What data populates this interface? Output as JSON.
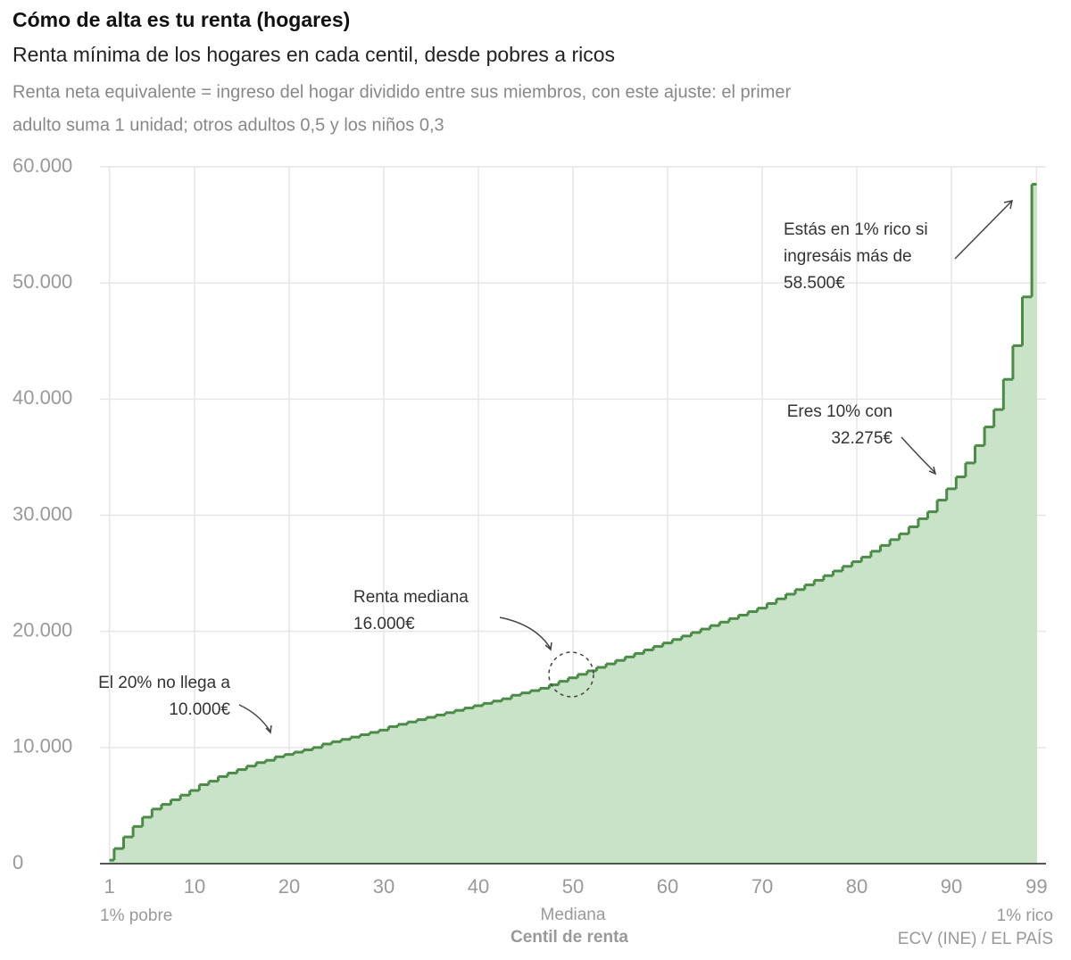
{
  "chart_data": {
    "type": "step",
    "title": "Cómo de alta es tu renta (hogares)",
    "subtitle": "Renta mínima de los hogares en cada centil, desde pobres a ricos",
    "description": [
      "Renta neta equivalente = ingreso del hogar dividido entre sus miembros, con este ajuste: el primer",
      "adulto suma 1 unidad; otros adultos 0,5 y los niños 0,3"
    ],
    "x_label": "Centil de renta",
    "x_notes": [
      "1% pobre",
      "Mediana",
      "1% rico"
    ],
    "source": "ECV (INE) / EL PAÍS",
    "annotations": [
      [
        "El 20% no llega a",
        "10.000€"
      ],
      [
        "Renta mediana",
        "16.000€"
      ],
      [
        "Eres 10% con",
        "32.275€"
      ],
      [
        "Estás en 1% rico si",
        "ingresáis más de",
        "58.500€"
      ]
    ],
    "x": [
      1,
      2,
      3,
      4,
      5,
      6,
      7,
      8,
      9,
      10,
      11,
      12,
      13,
      14,
      15,
      16,
      17,
      18,
      19,
      20,
      21,
      22,
      23,
      24,
      25,
      26,
      27,
      28,
      29,
      30,
      31,
      32,
      33,
      34,
      35,
      36,
      37,
      38,
      39,
      40,
      41,
      42,
      43,
      44,
      45,
      46,
      47,
      48,
      49,
      50,
      51,
      52,
      53,
      54,
      55,
      56,
      57,
      58,
      59,
      60,
      61,
      62,
      63,
      64,
      65,
      66,
      67,
      68,
      69,
      70,
      71,
      72,
      73,
      74,
      75,
      76,
      77,
      78,
      79,
      80,
      81,
      82,
      83,
      84,
      85,
      86,
      87,
      88,
      89,
      90,
      91,
      92,
      93,
      94,
      95,
      96,
      97,
      98,
      99
    ],
    "values": [
      300,
      1300,
      2300,
      3200,
      4000,
      4700,
      5100,
      5500,
      5900,
      6300,
      6800,
      7100,
      7500,
      7800,
      8100,
      8400,
      8700,
      8900,
      9200,
      9400,
      9600,
      9800,
      10000,
      10300,
      10500,
      10700,
      10900,
      11100,
      11300,
      11500,
      11800,
      12000,
      12200,
      12400,
      12600,
      12800,
      13000,
      13200,
      13400,
      13600,
      13800,
      14000,
      14200,
      14500,
      14700,
      14900,
      15100,
      15400,
      15700,
      16000,
      16300,
      16600,
      16900,
      17200,
      17500,
      17800,
      18100,
      18400,
      18700,
      19000,
      19300,
      19600,
      19900,
      20200,
      20500,
      20800,
      21100,
      21400,
      21700,
      22000,
      22400,
      22800,
      23200,
      23600,
      24000,
      24400,
      24800,
      25200,
      25600,
      26000,
      26400,
      26900,
      27400,
      27900,
      28400,
      29000,
      29700,
      30300,
      31300,
      32275,
      33300,
      34500,
      36000,
      37600,
      39100,
      41700,
      44600,
      48800,
      58500
    ],
    "color": "#4b8b47",
    "fill_color": "#c9e3c8",
    "xlim": [
      0,
      100
    ],
    "xticks": [
      1,
      10,
      20,
      30,
      40,
      50,
      60,
      70,
      80,
      90,
      99
    ],
    "ylim": [
      0,
      60000
    ],
    "yticks": [
      0,
      {
        "value": 10000,
        "label": "10.000"
      },
      {
        "value": 20000,
        "label": "20.000"
      },
      {
        "value": 30000,
        "label": "30.000"
      },
      {
        "value": 40000,
        "label": "40.000"
      },
      {
        "value": 50000,
        "label": "50.000"
      },
      {
        "value": 60000,
        "label": "60.000"
      }
    ],
    "grid": true
  }
}
